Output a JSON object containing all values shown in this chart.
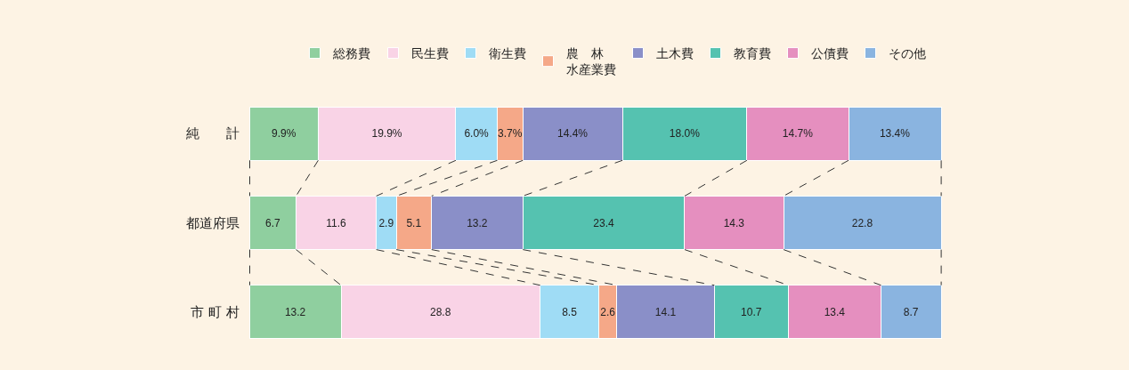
{
  "chart_data": {
    "type": "bar",
    "orientation": "horizontal",
    "stacked": true,
    "legend": "top",
    "categories": [
      "純　　計",
      "都道府県",
      "市 町 村"
    ],
    "series": [
      {
        "name": "総務費",
        "color": "#8fcf9f",
        "values": [
          9.9,
          6.7,
          13.2
        ],
        "value_labels": [
          "9.9%",
          "6.7",
          "13.2"
        ]
      },
      {
        "name": "民生費",
        "color": "#f9d3e6",
        "values": [
          19.9,
          11.6,
          28.8
        ],
        "value_labels": [
          "19.9%",
          "11.6",
          "28.8"
        ]
      },
      {
        "name": "衛生費",
        "color": "#9fdcf5",
        "values": [
          6.0,
          2.9,
          8.5
        ],
        "value_labels": [
          "6.0%",
          "2.9",
          "8.5"
        ]
      },
      {
        "name": "農　林水産業費",
        "color": "#f5a888",
        "values": [
          3.7,
          5.1,
          2.6
        ],
        "value_labels": [
          "3.7%",
          "5.1",
          "2.6"
        ]
      },
      {
        "name": "土木費",
        "color": "#8a8fc8",
        "values": [
          14.4,
          13.2,
          14.1
        ],
        "value_labels": [
          "14.4%",
          "13.2",
          "14.1"
        ]
      },
      {
        "name": "教育費",
        "color": "#55c2b0",
        "values": [
          18.0,
          23.4,
          10.7
        ],
        "value_labels": [
          "18.0%",
          "23.4",
          "10.7"
        ]
      },
      {
        "name": "公債費",
        "color": "#e58fbf",
        "values": [
          14.7,
          14.3,
          13.4
        ],
        "value_labels": [
          "14.7%",
          "14.3",
          "13.4"
        ]
      },
      {
        "name": "その他",
        "color": "#8ab4e0",
        "values": [
          13.4,
          22.8,
          8.7
        ],
        "value_labels": [
          "13.4%",
          "22.8",
          "8.7"
        ]
      }
    ]
  }
}
